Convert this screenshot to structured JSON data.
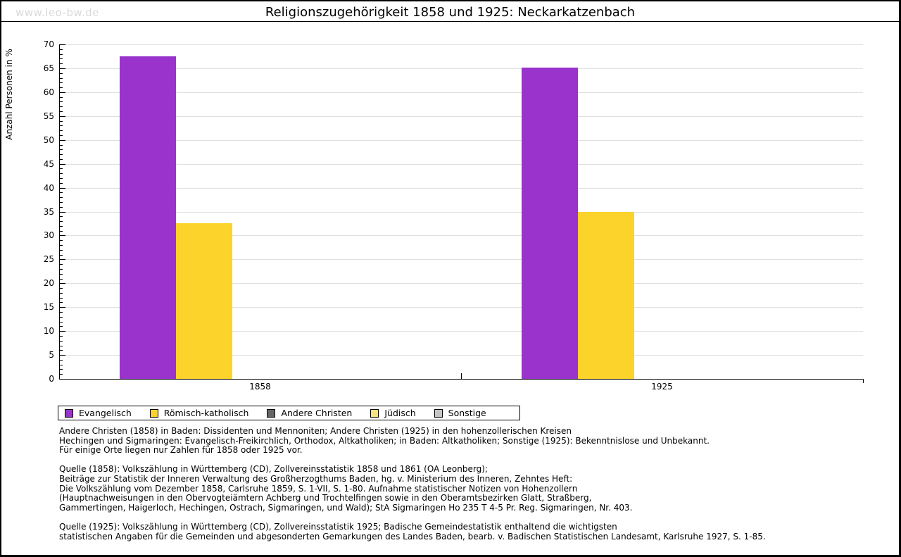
{
  "window": {
    "watermark": "www.leo-bw.de",
    "title": "Religionszugehörigkeit 1858 und 1925: Neckarkatzenbach"
  },
  "chart_data": {
    "type": "bar",
    "title": "Religionszugehörigkeit 1858 und 1925: Neckarkatzenbach",
    "xlabel": "",
    "ylabel": "Anzahl Personen in %",
    "ylim": [
      0,
      70
    ],
    "ytick_step": 5,
    "yminor_step": 1,
    "grid": true,
    "legend_position": "bottom",
    "categories": [
      "1858",
      "1925"
    ],
    "series": [
      {
        "name": "Evangelisch",
        "color": "#9933CC",
        "values": [
          67.5,
          65.2
        ]
      },
      {
        "name": "Römisch-katholisch",
        "color": "#FBD32B",
        "values": [
          32.5,
          35.0
        ]
      },
      {
        "name": "Andere Christen",
        "color": "#666666",
        "values": [
          0,
          0
        ]
      },
      {
        "name": "Jüdisch",
        "color": "#F8E27A",
        "values": [
          0,
          0
        ]
      },
      {
        "name": "Sonstige",
        "color": "#C5C5C5",
        "values": [
          0,
          0
        ]
      }
    ]
  },
  "colors": {
    "gridline": "#e0e0e0",
    "axis": "#000000",
    "watermark": "#d9d9d9"
  },
  "notes": [
    [
      "Andere Christen (1858) in Baden: Dissidenten und Mennoniten; Andere Christen (1925) in den hohenzollerischen Kreisen",
      "Hechingen und Sigmaringen: Evangelisch-Freikirchlich, Orthodox, Altkatholiken; in Baden: Altkatholiken; Sonstige (1925): Bekenntnislose und Unbekannt.",
      "Für einige Orte liegen nur Zahlen für 1858 oder 1925 vor."
    ],
    [
      "Quelle (1858): Volkszählung in Württemberg (CD), Zollvereinsstatistik 1858 und 1861 (OA Leonberg);",
      "Beiträge zur Statistik der Inneren Verwaltung des Großherzogthums Baden, hg. v. Ministerium des Inneren, Zehntes Heft:",
      "Die Volkszählung vom Dezember 1858, Carlsruhe 1859, S. 1-VII, S. 1-80. Aufnahme statistischer Notizen von Hohenzollern",
      "(Hauptnachweisungen in den Obervogteiämtern Achberg und Trochtelfingen sowie in den Oberamtsbezirken Glatt, Straßberg,",
      "Gammertingen, Haigerloch, Hechingen, Ostrach, Sigmaringen, und Wald); StA Sigmaringen Ho 235 T 4-5 Pr. Reg. Sigmaringen, Nr. 403."
    ],
    [
      "Quelle (1925): Volkszählung in Württemberg (CD), Zollvereinsstatistik 1925; Badische Gemeindestatistik enthaltend die wichtigsten",
      "statistischen Angaben für die Gemeinden und abgesonderten Gemarkungen des Landes Baden, bearb. v. Badischen Statistischen Landesamt, Karlsruhe 1927, S. 1-85."
    ]
  ]
}
